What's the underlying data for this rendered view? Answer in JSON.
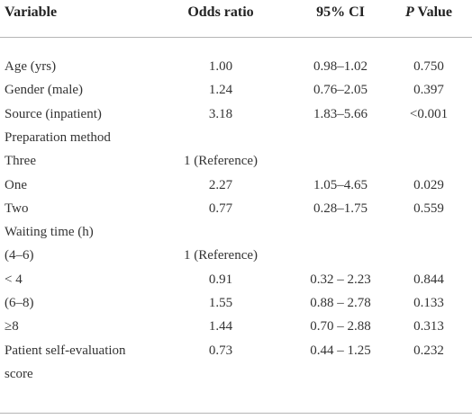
{
  "table": {
    "header": [
      "Variable",
      "Odds ratio",
      "95% CI",
      {
        "italic": "P",
        "text": "Value"
      }
    ],
    "rows": [
      {
        "variable": [
          "Age (yrs)"
        ],
        "odds": "1.00",
        "ci": "0.98–1.02",
        "p": "0.750"
      },
      {
        "variable": [
          "Gender (male)"
        ],
        "odds": "1.24",
        "ci": "0.76–2.05",
        "p": "0.397"
      },
      {
        "variable": [
          "Source (inpatient)"
        ],
        "odds": "3.18",
        "ci": "1.83–5.66",
        "p": "<0.001"
      },
      {
        "variable": [
          "Preparation method"
        ]
      },
      {
        "variable": [
          "Three"
        ],
        "odds": "1 (Reference)"
      },
      {
        "variable": [
          "One"
        ],
        "odds": "2.27",
        "ci": "1.05–4.65",
        "p": "0.029"
      },
      {
        "variable": [
          "Two"
        ],
        "odds": "0.77",
        "ci": "0.28–1.75",
        "p": "0.559"
      },
      {
        "variable": [
          "Waiting time (h)"
        ]
      },
      {
        "variable": [
          "(4–6)"
        ],
        "odds": "1 (Reference)"
      },
      {
        "variable": [
          "< 4"
        ],
        "odds": "0.91",
        "ci": "0.32 – 2.23",
        "p": "0.844"
      },
      {
        "variable": [
          "(6–8)"
        ],
        "odds": "1.55",
        "ci": "0.88 – 2.78",
        "p": "0.133"
      },
      {
        "variable": [
          "≥8"
        ],
        "odds": "1.44",
        "ci": "0.70 – 2.88",
        "p": "0.313"
      },
      {
        "variable": [
          "Patient self-evaluation",
          "score"
        ],
        "odds": "0.73",
        "ci": "0.44 – 1.25",
        "p": "0.232"
      }
    ]
  }
}
